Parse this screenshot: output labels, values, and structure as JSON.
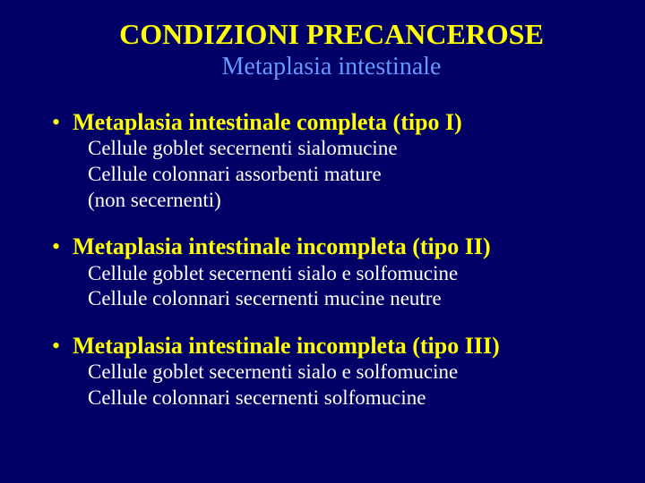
{
  "colors": {
    "background": "#000066",
    "title": "#ffff00",
    "subtitle": "#6699ff",
    "heading": "#ffff00",
    "bullet": "#ffff00",
    "detail": "#ffffff"
  },
  "typography": {
    "title_fontsize": 32,
    "subtitle_fontsize": 28,
    "heading_fontsize": 26,
    "detail_fontsize": 23,
    "font_family": "Georgia, Times New Roman, serif"
  },
  "title": "CONDIZIONI PRECANCEROSE",
  "subtitle": "Metaplasia intestinale",
  "bullet_char": "•",
  "sections": [
    {
      "heading": "Metaplasia intestinale completa  (tipo I)",
      "details": [
        "Cellule goblet secernenti sialomucine",
        "Cellule colonnari assorbenti mature",
        "(non secernenti)"
      ]
    },
    {
      "heading": "Metaplasia intestinale incompleta  (tipo II)",
      "details": [
        "Cellule goblet secernenti sialo e solfomucine",
        "Cellule colonnari secernenti mucine neutre"
      ]
    },
    {
      "heading": "Metaplasia intestinale incompleta  (tipo III)",
      "details": [
        "Cellule goblet secernenti sialo e solfomucine",
        "Cellule colonnari secernenti solfomucine"
      ]
    }
  ]
}
